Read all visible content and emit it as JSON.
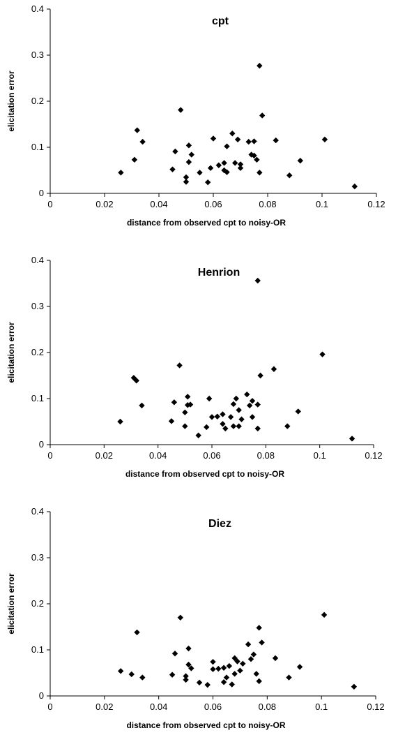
{
  "chart_data": [
    {
      "type": "scatter",
      "title": "cpt",
      "xlabel": "distance from observed cpt to noisy-OR",
      "ylabel": "elicitation error",
      "xlim": [
        0,
        0.12
      ],
      "ylim": [
        0,
        0.4
      ],
      "xticks": [
        "0",
        "0.02",
        "0.04",
        "0.06",
        "0.08",
        "0.1",
        "0.12"
      ],
      "yticks": [
        "0",
        "0.1",
        "0.2",
        "0.3",
        "0.4"
      ],
      "grid": false,
      "legend": "none",
      "marker_color": "#000000",
      "points": [
        [
          0.026,
          0.045
        ],
        [
          0.031,
          0.073
        ],
        [
          0.032,
          0.137
        ],
        [
          0.034,
          0.112
        ],
        [
          0.045,
          0.052
        ],
        [
          0.046,
          0.091
        ],
        [
          0.048,
          0.181
        ],
        [
          0.05,
          0.025
        ],
        [
          0.05,
          0.035
        ],
        [
          0.051,
          0.068
        ],
        [
          0.051,
          0.104
        ],
        [
          0.052,
          0.084
        ],
        [
          0.055,
          0.045
        ],
        [
          0.058,
          0.024
        ],
        [
          0.059,
          0.055
        ],
        [
          0.06,
          0.119
        ],
        [
          0.062,
          0.061
        ],
        [
          0.064,
          0.066
        ],
        [
          0.064,
          0.05
        ],
        [
          0.065,
          0.046
        ],
        [
          0.065,
          0.102
        ],
        [
          0.067,
          0.13
        ],
        [
          0.068,
          0.066
        ],
        [
          0.069,
          0.117
        ],
        [
          0.07,
          0.063
        ],
        [
          0.07,
          0.055
        ],
        [
          0.073,
          0.112
        ],
        [
          0.074,
          0.084
        ],
        [
          0.075,
          0.082
        ],
        [
          0.075,
          0.113
        ],
        [
          0.076,
          0.073
        ],
        [
          0.077,
          0.277
        ],
        [
          0.077,
          0.045
        ],
        [
          0.078,
          0.169
        ],
        [
          0.083,
          0.115
        ],
        [
          0.088,
          0.039
        ],
        [
          0.092,
          0.071
        ],
        [
          0.101,
          0.117
        ],
        [
          0.112,
          0.015
        ]
      ]
    },
    {
      "type": "scatter",
      "title": "Henrion",
      "xlabel": "distance from observed cpt to noisy-OR",
      "ylabel": "elicitation error",
      "xlim": [
        0,
        0.12
      ],
      "ylim": [
        0,
        0.4
      ],
      "xticks": [
        "0",
        "0.02",
        "0.04",
        "0.06",
        "0.08",
        "0.1",
        "0.12"
      ],
      "yticks": [
        "0",
        "0.1",
        "0.2",
        "0.3",
        "0.4"
      ],
      "grid": false,
      "legend": "none",
      "marker_color": "#000000",
      "points": [
        [
          0.026,
          0.05
        ],
        [
          0.031,
          0.145
        ],
        [
          0.032,
          0.139
        ],
        [
          0.034,
          0.085
        ],
        [
          0.045,
          0.051
        ],
        [
          0.046,
          0.092
        ],
        [
          0.048,
          0.172
        ],
        [
          0.05,
          0.04
        ],
        [
          0.05,
          0.07
        ],
        [
          0.051,
          0.086
        ],
        [
          0.051,
          0.104
        ],
        [
          0.052,
          0.087
        ],
        [
          0.055,
          0.02
        ],
        [
          0.058,
          0.038
        ],
        [
          0.059,
          0.1
        ],
        [
          0.06,
          0.06
        ],
        [
          0.062,
          0.061
        ],
        [
          0.064,
          0.066
        ],
        [
          0.064,
          0.045
        ],
        [
          0.065,
          0.035
        ],
        [
          0.067,
          0.06
        ],
        [
          0.068,
          0.088
        ],
        [
          0.068,
          0.04
        ],
        [
          0.069,
          0.1
        ],
        [
          0.07,
          0.04
        ],
        [
          0.07,
          0.075
        ],
        [
          0.071,
          0.055
        ],
        [
          0.073,
          0.109
        ],
        [
          0.074,
          0.085
        ],
        [
          0.075,
          0.095
        ],
        [
          0.075,
          0.06
        ],
        [
          0.077,
          0.356
        ],
        [
          0.077,
          0.035
        ],
        [
          0.077,
          0.087
        ],
        [
          0.078,
          0.15
        ],
        [
          0.083,
          0.164
        ],
        [
          0.088,
          0.04
        ],
        [
          0.092,
          0.072
        ],
        [
          0.101,
          0.196
        ],
        [
          0.112,
          0.013
        ]
      ]
    },
    {
      "type": "scatter",
      "title": "Diez",
      "xlabel": "distance from observed cpt to noisy-OR",
      "ylabel": "elicitation error",
      "xlim": [
        0,
        0.12
      ],
      "ylim": [
        0,
        0.4
      ],
      "xticks": [
        "0",
        "0.02",
        "0.04",
        "0.06",
        "0.08",
        "0.1",
        "0.12"
      ],
      "yticks": [
        "0",
        "0.1",
        "0.2",
        "0.3",
        "0.4"
      ],
      "grid": false,
      "legend": "none",
      "marker_color": "#000000",
      "points": [
        [
          0.026,
          0.054
        ],
        [
          0.03,
          0.047
        ],
        [
          0.032,
          0.138
        ],
        [
          0.034,
          0.04
        ],
        [
          0.045,
          0.046
        ],
        [
          0.046,
          0.092
        ],
        [
          0.048,
          0.17
        ],
        [
          0.05,
          0.043
        ],
        [
          0.05,
          0.035
        ],
        [
          0.051,
          0.068
        ],
        [
          0.051,
          0.103
        ],
        [
          0.052,
          0.06
        ],
        [
          0.055,
          0.029
        ],
        [
          0.058,
          0.024
        ],
        [
          0.06,
          0.074
        ],
        [
          0.06,
          0.058
        ],
        [
          0.062,
          0.059
        ],
        [
          0.064,
          0.061
        ],
        [
          0.064,
          0.03
        ],
        [
          0.065,
          0.04
        ],
        [
          0.066,
          0.065
        ],
        [
          0.067,
          0.025
        ],
        [
          0.068,
          0.082
        ],
        [
          0.068,
          0.048
        ],
        [
          0.069,
          0.075
        ],
        [
          0.07,
          0.055
        ],
        [
          0.071,
          0.07
        ],
        [
          0.073,
          0.112
        ],
        [
          0.074,
          0.08
        ],
        [
          0.075,
          0.09
        ],
        [
          0.076,
          0.048
        ],
        [
          0.077,
          0.032
        ],
        [
          0.077,
          0.148
        ],
        [
          0.078,
          0.116
        ],
        [
          0.083,
          0.082
        ],
        [
          0.088,
          0.04
        ],
        [
          0.092,
          0.063
        ],
        [
          0.101,
          0.176
        ],
        [
          0.112,
          0.02
        ]
      ]
    }
  ]
}
